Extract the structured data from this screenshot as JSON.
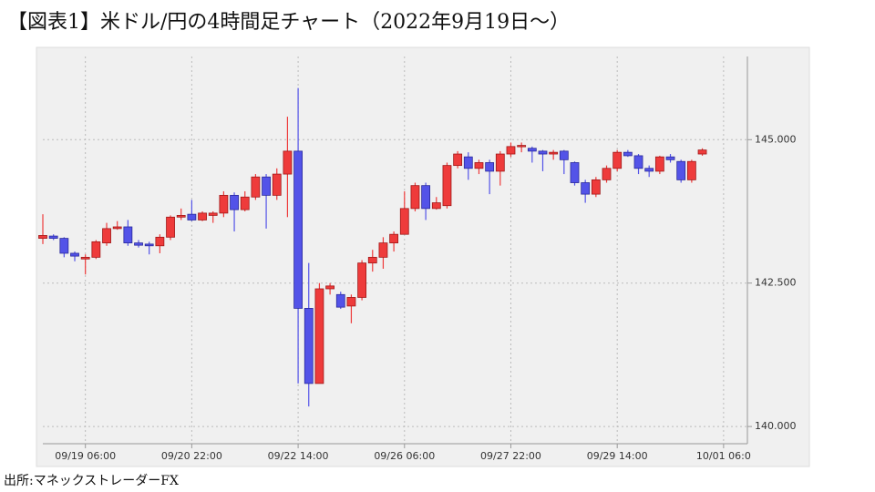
{
  "chart_data": {
    "type": "candlestick",
    "title": "【図表1】米ドル/円の4時間足チャート（2022年9月19日～）",
    "source": "出所:マネックストレーダーFX",
    "categories": [
      null,
      null,
      null,
      null,
      "09/19 06:00",
      null,
      null,
      null,
      null,
      null,
      null,
      null,
      null,
      null,
      "09/20 22:00",
      null,
      null,
      null,
      null,
      null,
      null,
      null,
      null,
      null,
      "09/22 14:00",
      null,
      null,
      null,
      null,
      null,
      null,
      null,
      null,
      null,
      "09/26 06:00",
      null,
      null,
      null,
      null,
      null,
      null,
      null,
      null,
      null,
      "09/27 22:00",
      null,
      null,
      null,
      null,
      null,
      null,
      null,
      null,
      null,
      "09/29 14:00",
      null,
      null,
      null,
      null,
      null,
      null,
      null,
      null,
      null,
      "10/01 06:0"
    ],
    "open": [
      143.28,
      143.32,
      143.28,
      143.02,
      142.92,
      142.95,
      143.2,
      143.45,
      143.48,
      143.2,
      143.18,
      143.15,
      143.3,
      143.65,
      143.7,
      143.6,
      143.68,
      143.72,
      144.03,
      143.78,
      144.0,
      144.35,
      144.03,
      144.4,
      144.8,
      142.06,
      140.75,
      142.4,
      142.3,
      142.1,
      142.25,
      142.85,
      142.95,
      143.2,
      143.35,
      143.8,
      144.2,
      143.8,
      143.85,
      144.55,
      144.7,
      144.5,
      144.6,
      144.45,
      144.75,
      144.88,
      144.85,
      144.8,
      144.75,
      144.8,
      144.6,
      144.25,
      144.05,
      144.3,
      144.5,
      144.78,
      144.72,
      144.5,
      144.45,
      144.7,
      144.62,
      144.3,
      144.75,
      null,
      null
    ],
    "close": [
      143.33,
      143.28,
      143.02,
      142.97,
      142.95,
      143.22,
      143.45,
      143.48,
      143.2,
      143.16,
      143.15,
      143.3,
      143.65,
      143.68,
      143.6,
      143.72,
      143.72,
      144.03,
      143.78,
      144.0,
      144.35,
      144.03,
      144.4,
      144.8,
      142.06,
      140.75,
      142.4,
      142.45,
      142.08,
      142.25,
      142.85,
      142.95,
      143.2,
      143.35,
      143.8,
      144.2,
      143.8,
      143.9,
      144.55,
      144.75,
      144.5,
      144.6,
      144.45,
      144.75,
      144.88,
      144.9,
      144.8,
      144.75,
      144.78,
      144.65,
      144.25,
      144.05,
      144.3,
      144.5,
      144.78,
      144.72,
      144.5,
      144.45,
      144.7,
      144.65,
      144.3,
      144.62,
      144.82,
      null,
      null
    ],
    "high": [
      143.7,
      143.35,
      143.3,
      143.05,
      143.0,
      143.25,
      143.55,
      143.58,
      143.6,
      143.25,
      143.22,
      143.35,
      143.68,
      143.8,
      143.95,
      143.75,
      143.75,
      144.1,
      144.08,
      144.1,
      144.4,
      144.4,
      144.5,
      145.4,
      145.9,
      142.85,
      142.5,
      142.5,
      142.35,
      142.3,
      142.9,
      143.08,
      143.3,
      143.4,
      144.1,
      144.25,
      144.25,
      144.0,
      144.6,
      144.8,
      144.78,
      144.65,
      144.65,
      144.8,
      144.95,
      144.95,
      144.88,
      144.82,
      144.82,
      144.82,
      144.62,
      144.3,
      144.35,
      144.55,
      144.82,
      144.82,
      144.75,
      144.55,
      144.72,
      144.75,
      144.65,
      144.65,
      144.85,
      null,
      null
    ],
    "low": [
      143.18,
      143.25,
      142.95,
      142.88,
      142.65,
      142.92,
      143.15,
      143.43,
      143.15,
      143.12,
      143.0,
      143.02,
      143.25,
      143.6,
      143.58,
      143.58,
      143.55,
      143.65,
      143.4,
      143.75,
      143.95,
      143.45,
      143.95,
      143.65,
      140.75,
      140.35,
      140.75,
      142.3,
      142.05,
      141.8,
      142.2,
      142.7,
      142.75,
      143.05,
      143.35,
      143.75,
      143.6,
      143.78,
      143.8,
      144.5,
      144.3,
      144.4,
      144.05,
      144.2,
      144.7,
      144.78,
      144.6,
      144.45,
      144.65,
      144.4,
      144.2,
      143.9,
      144.0,
      144.25,
      144.45,
      144.7,
      144.4,
      144.35,
      144.4,
      144.6,
      144.25,
      144.25,
      144.72,
      null,
      null
    ],
    "up_color": "#ee3b3b",
    "down_color": "#5353e8",
    "ylim": [
      139.7,
      146.45
    ],
    "yticks": [
      {
        "value": 140,
        "label": "140.000"
      },
      {
        "value": 142.5,
        "label": "142.500"
      },
      {
        "value": 145,
        "label": "145.000"
      }
    ],
    "grid": true
  }
}
